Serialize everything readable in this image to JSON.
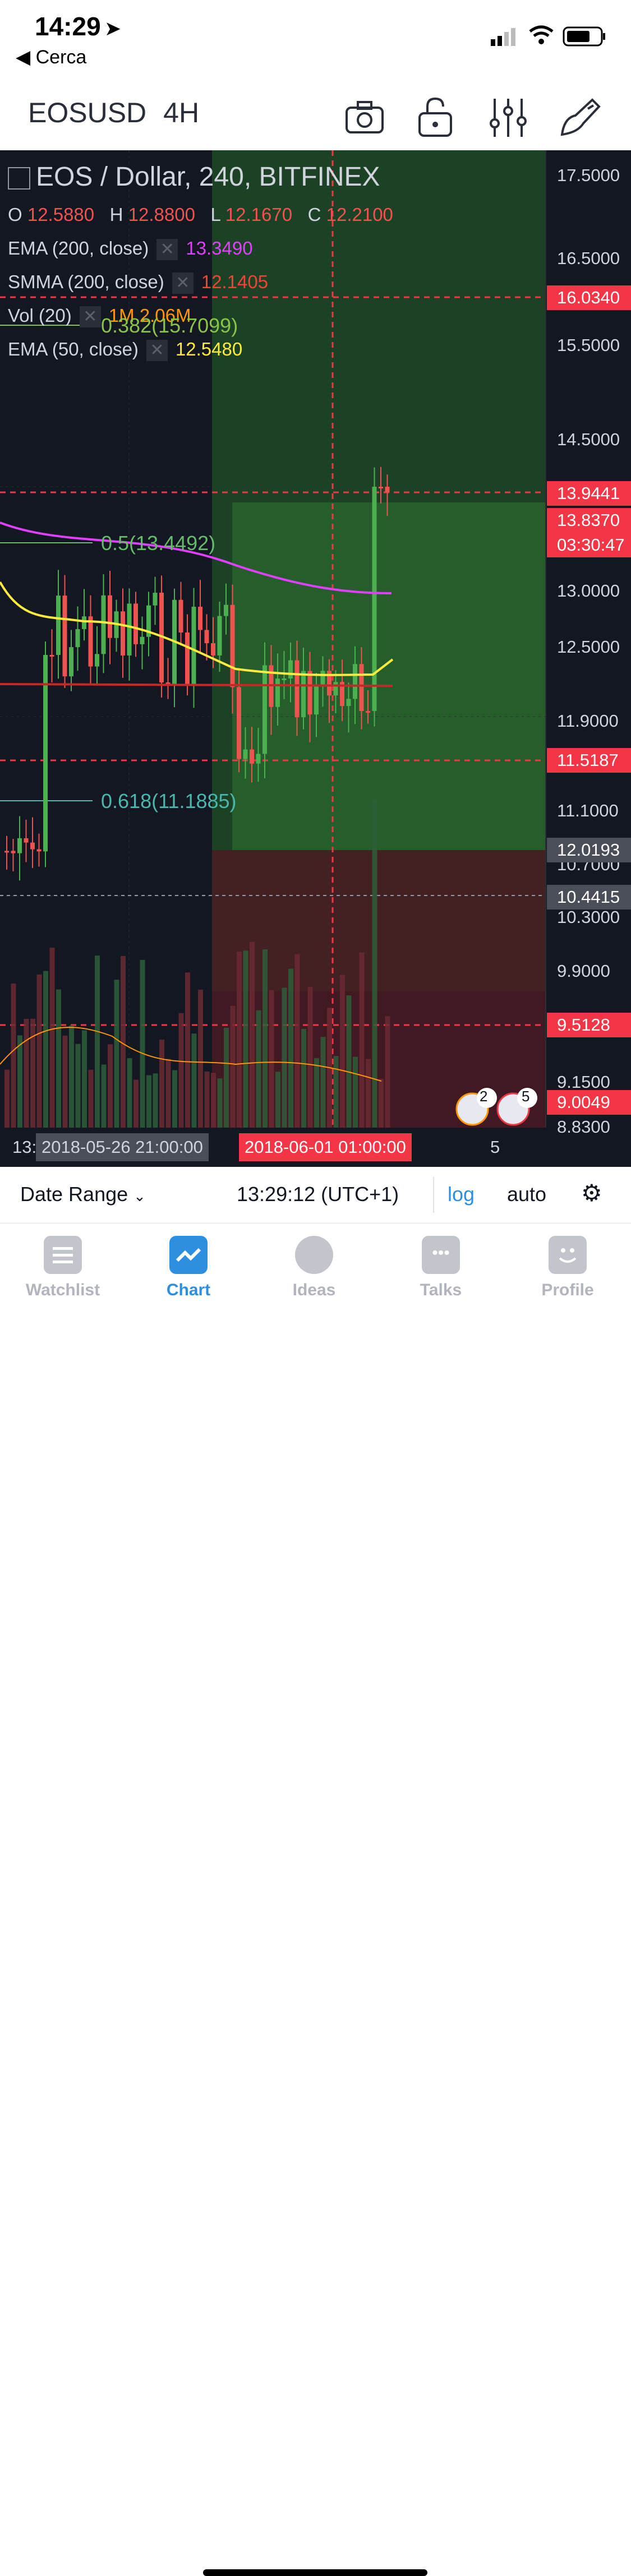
{
  "status_bar": {
    "time": "14:29",
    "back_label": "◀ Cerca"
  },
  "toolbar": {
    "symbol": "EOSUSD",
    "interval": "4H",
    "icons": [
      "camera-icon",
      "unlock-icon",
      "indicators-icon",
      "drawing-icon"
    ]
  },
  "legend": {
    "title": "EOS / Dollar, 240, BITFINEX",
    "ohlc": {
      "o_label": "O",
      "o": "12.5880",
      "h_label": "H",
      "h": "12.8800",
      "l_label": "L",
      "l": "12.1670",
      "c_label": "C",
      "c": "12.2100"
    },
    "indicators": [
      {
        "label": "EMA (200, close)",
        "value": "13.3490",
        "color": "#e040fb"
      },
      {
        "label": "SMMA (200, close)",
        "value": "12.1405",
        "color": "#f44336"
      },
      {
        "label": "Vol (20)",
        "value": "1M  2.06M",
        "color": "#ff9800"
      },
      {
        "label": "EMA (50, close)",
        "value": "12.5480",
        "color": "#ffeb3b"
      }
    ]
  },
  "fib_labels": [
    {
      "text": "0.382(15.7099)",
      "color": "#8bc34a"
    },
    {
      "text": "0.5(13.4492)",
      "color": "#66bb6a"
    },
    {
      "text": "0.618(11.1885)",
      "color": "#4db6ac"
    }
  ],
  "price_axis": [
    "17.5000",
    "16.5000",
    "15.5000",
    "14.5000",
    "13.0000",
    "12.5000",
    "11.9000",
    "11.1000",
    "10.7000",
    "10.3000",
    "9.9000",
    "9.1500",
    "8.8300"
  ],
  "price_labels": [
    {
      "text": "16.0340",
      "bg": "#f23645"
    },
    {
      "text": "13.9441",
      "bg": "#f23645"
    },
    {
      "text": "13.8370",
      "bg": "#f23645"
    },
    {
      "text": "03:30:47",
      "bg": "#f23645"
    },
    {
      "text": "12.0193",
      "bg": "#4a4e59"
    },
    {
      "text": "11.5187",
      "bg": "#f23645"
    },
    {
      "text": "10.4415",
      "bg": "#4a4e59"
    },
    {
      "text": "9.5128",
      "bg": "#f23645"
    },
    {
      "text": "9.0049",
      "bg": "#f23645"
    }
  ],
  "x_axis": {
    "left": "13:",
    "date1": "2018-05-26 21:00:00",
    "date2": "2018-06-01 01:00:00",
    "right": "5"
  },
  "event_badges": [
    "2",
    "5"
  ],
  "bottom_toolbar": {
    "date_range": "Date Range",
    "time": "13:29:12 (UTC+1)",
    "log": "log",
    "auto": "auto"
  },
  "tabs": [
    {
      "label": "Watchlist",
      "active": false
    },
    {
      "label": "Chart",
      "active": true
    },
    {
      "label": "Ideas",
      "active": false
    },
    {
      "label": "Talks",
      "active": false
    },
    {
      "label": "Profile",
      "active": false
    }
  ],
  "colors": {
    "background": "#131722",
    "up": "#4caf50",
    "down": "#ef5350",
    "profit_zone": "#1b5e20",
    "loss_zone": "#4a1520",
    "accent": "#2e8fe0"
  }
}
